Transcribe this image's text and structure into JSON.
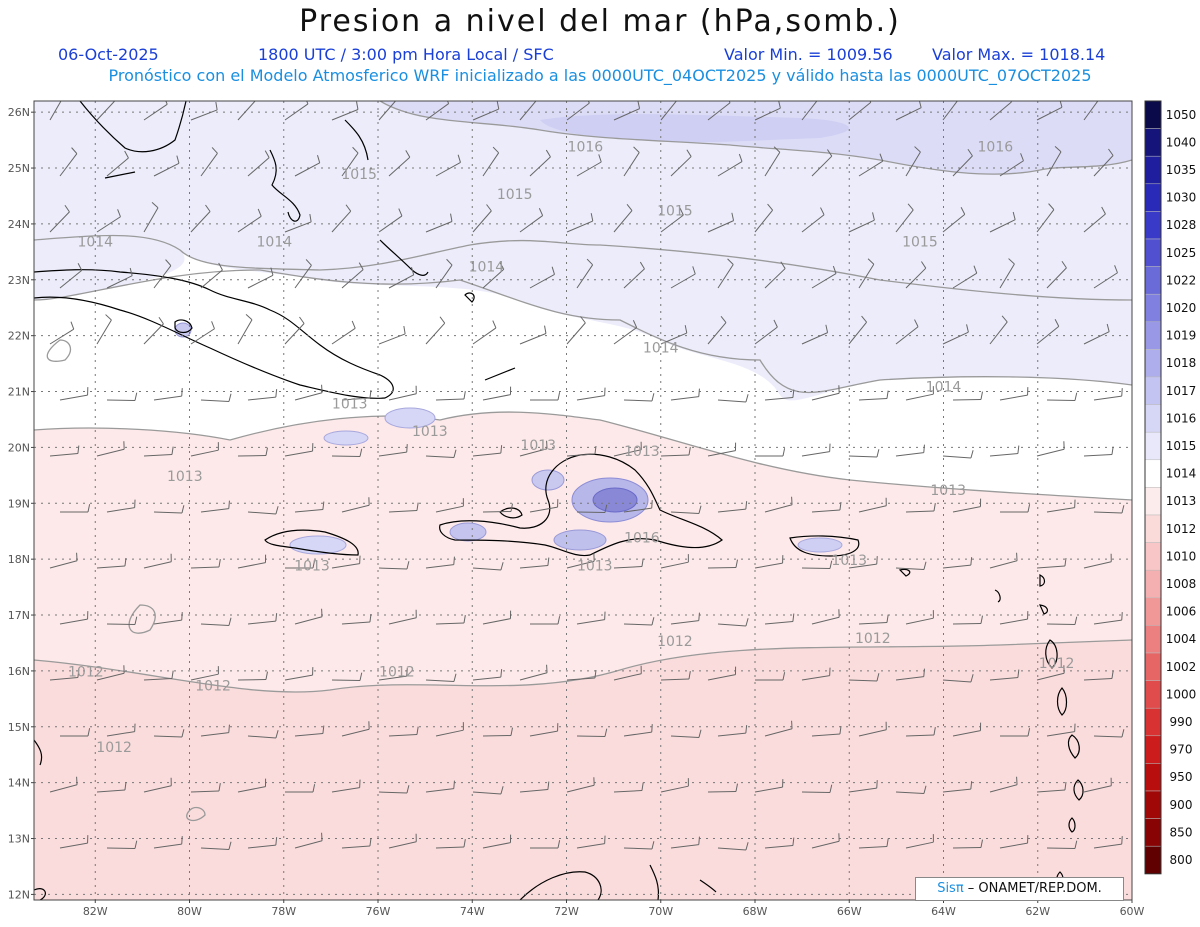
{
  "header": {
    "title": "Presion a nivel del mar (hPa,somb.)",
    "date": "06-Oct-2025",
    "time": "1800 UTC / 3:00 pm Hora Local / SFC",
    "min_label": "Valor Min. = 1009.56",
    "max_label": "Valor Max. = 1018.14",
    "model_info": "Pronóstico con el Modelo Atmosferico WRF inicializado a las 0000UTC_04OCT2025 y válido hasta las  0000UTC_07OCT2025"
  },
  "axes": {
    "lat_labels": [
      "26N",
      "25N",
      "24N",
      "23N",
      "22N",
      "21N",
      "20N",
      "19N",
      "18N",
      "17N",
      "16N",
      "15N",
      "14N",
      "13N",
      "12N"
    ],
    "lon_labels": [
      "82W",
      "80W",
      "78W",
      "76W",
      "74W",
      "72W",
      "70W",
      "68W",
      "66W",
      "64W",
      "62W",
      "60W"
    ]
  },
  "contour_labels": [
    {
      "text": "1016",
      "lon": -71.6,
      "lat": 25.3
    },
    {
      "text": "1016",
      "lon": -62.9,
      "lat": 25.3
    },
    {
      "text": "1015",
      "lon": -76.4,
      "lat": 24.8
    },
    {
      "text": "1015",
      "lon": -73.1,
      "lat": 24.45
    },
    {
      "text": "1015",
      "lon": -69.7,
      "lat": 24.15
    },
    {
      "text": "1015",
      "lon": -64.5,
      "lat": 23.6
    },
    {
      "text": "1014",
      "lon": -82.0,
      "lat": 23.6
    },
    {
      "text": "1014",
      "lon": -78.2,
      "lat": 23.6
    },
    {
      "text": "1014",
      "lon": -73.7,
      "lat": 23.15
    },
    {
      "text": "1014",
      "lon": -70.0,
      "lat": 21.7
    },
    {
      "text": "1014",
      "lon": -64.0,
      "lat": 21.0
    },
    {
      "text": "1013",
      "lon": -76.6,
      "lat": 20.7
    },
    {
      "text": "1013",
      "lon": -74.9,
      "lat": 20.2
    },
    {
      "text": "1013",
      "lon": -72.6,
      "lat": 19.95
    },
    {
      "text": "1013",
      "lon": -70.4,
      "lat": 19.85
    },
    {
      "text": "1013",
      "lon": -80.1,
      "lat": 19.4
    },
    {
      "text": "1013",
      "lon": -63.9,
      "lat": 19.15
    },
    {
      "text": "1013",
      "lon": -77.4,
      "lat": 17.8
    },
    {
      "text": "1013",
      "lon": -71.4,
      "lat": 17.8
    },
    {
      "text": "1013",
      "lon": -66.0,
      "lat": 17.9
    },
    {
      "text": "1016",
      "lon": -70.4,
      "lat": 18.3
    },
    {
      "text": "1012",
      "lon": -69.7,
      "lat": 16.45
    },
    {
      "text": "1012",
      "lon": -65.5,
      "lat": 16.5
    },
    {
      "text": "1012",
      "lon": -61.6,
      "lat": 16.05
    },
    {
      "text": "1012",
      "lon": -82.2,
      "lat": 15.9
    },
    {
      "text": "1012",
      "lon": -79.5,
      "lat": 15.65
    },
    {
      "text": "1012",
      "lon": -75.6,
      "lat": 15.9
    },
    {
      "text": "1012",
      "lon": -81.6,
      "lat": 14.55
    }
  ],
  "legend": {
    "levels": [
      "1050",
      "1040",
      "1035",
      "1030",
      "1028",
      "1025",
      "1022",
      "1020",
      "1019",
      "1018",
      "1017",
      "1016",
      "1015",
      "1014",
      "1013",
      "1012",
      "1010",
      "1008",
      "1006",
      "1004",
      "1002",
      "1000",
      "990",
      "970",
      "950",
      "900",
      "850",
      "800"
    ],
    "colors": [
      "#0a0a4a",
      "#14147a",
      "#1e1e9e",
      "#2a2ab8",
      "#3a3ac8",
      "#5050d0",
      "#6a6ad8",
      "#8080e0",
      "#9898e6",
      "#aeaeec",
      "#c4c4f2",
      "#d6d6f6",
      "#e8e8fa",
      "#ffffff",
      "#fdecec",
      "#fbdada",
      "#f8c6c6",
      "#f4b0b0",
      "#f09898",
      "#ec8080",
      "#e66666",
      "#e04c4c",
      "#d83232",
      "#cc1c1c",
      "#b80e0e",
      "#a00808",
      "#880404",
      "#600000"
    ]
  },
  "credit": {
    "logo": "Sisπ",
    "text": " – ONAMET/REP.DOM."
  },
  "colors": {
    "high_shade": "#dcdcf7",
    "mid_shade": "#ececfb",
    "low_shade": "#fde8e8",
    "lower_shade": "#fbdcdc",
    "grid": "#777777",
    "contour": "#9a9a9a",
    "coast": "#000000"
  }
}
